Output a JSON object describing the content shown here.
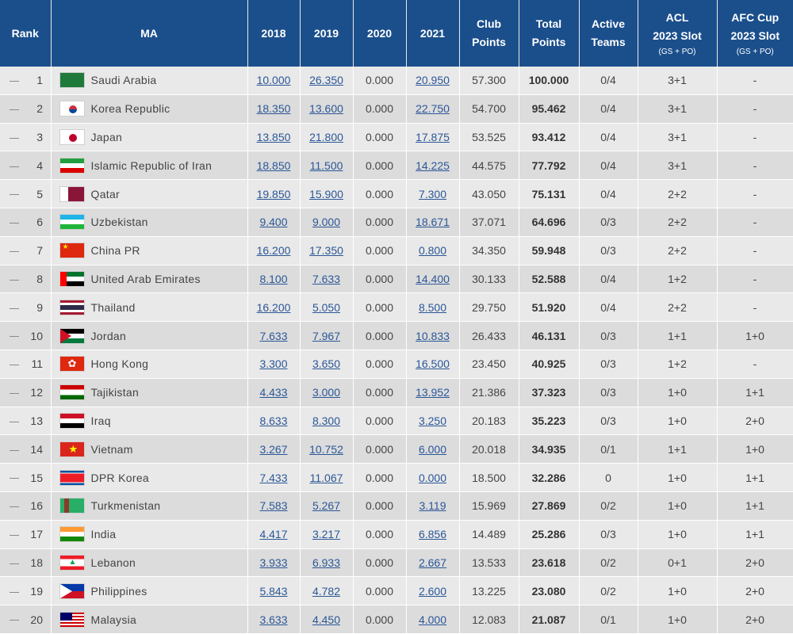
{
  "headers": {
    "rank": "Rank",
    "ma": "MA",
    "y2018": "2018",
    "y2019": "2019",
    "y2020": "2020",
    "y2021": "2021",
    "club_1": "Club",
    "club_2": "Points",
    "total_1": "Total",
    "total_2": "Points",
    "active_1": "Active",
    "active_2": "Teams",
    "acl_1": "ACL",
    "acl_2": "2023 Slot",
    "acl_sub": "(GS + PO)",
    "afc_1": "AFC Cup",
    "afc_2": "2023 Slot",
    "afc_sub": "(GS + PO)"
  },
  "rows": [
    {
      "rank": "1",
      "flag": "saudi-arabia-flag-icon",
      "name": "Saudi Arabia",
      "y2018": "10.000",
      "y2019": "26.350",
      "y2020": "0.000",
      "y2021": "20.950",
      "club": "57.300",
      "total": "100.000",
      "active": "0/4",
      "acl": "3+1",
      "afc": "-"
    },
    {
      "rank": "2",
      "flag": "korea-republic-flag-icon",
      "name": "Korea Republic",
      "y2018": "18.350",
      "y2019": "13.600",
      "y2020": "0.000",
      "y2021": "22.750",
      "club": "54.700",
      "total": "95.462",
      "active": "0/4",
      "acl": "3+1",
      "afc": "-"
    },
    {
      "rank": "3",
      "flag": "japan-flag-icon",
      "name": "Japan",
      "y2018": "13.850",
      "y2019": "21.800",
      "y2020": "0.000",
      "y2021": "17.875",
      "club": "53.525",
      "total": "93.412",
      "active": "0/4",
      "acl": "3+1",
      "afc": "-"
    },
    {
      "rank": "4",
      "flag": "iran-flag-icon",
      "name": "Islamic Republic of Iran",
      "y2018": "18.850",
      "y2019": "11.500",
      "y2020": "0.000",
      "y2021": "14.225",
      "club": "44.575",
      "total": "77.792",
      "active": "0/4",
      "acl": "3+1",
      "afc": "-"
    },
    {
      "rank": "5",
      "flag": "qatar-flag-icon",
      "name": "Qatar",
      "y2018": "19.850",
      "y2019": "15.900",
      "y2020": "0.000",
      "y2021": "7.300",
      "club": "43.050",
      "total": "75.131",
      "active": "0/4",
      "acl": "2+2",
      "afc": "-"
    },
    {
      "rank": "6",
      "flag": "uzbekistan-flag-icon",
      "name": "Uzbekistan",
      "y2018": "9.400",
      "y2019": "9.000",
      "y2020": "0.000",
      "y2021": "18.671",
      "club": "37.071",
      "total": "64.696",
      "active": "0/3",
      "acl": "2+2",
      "afc": "-"
    },
    {
      "rank": "7",
      "flag": "china-flag-icon",
      "name": "China PR",
      "y2018": "16.200",
      "y2019": "17.350",
      "y2020": "0.000",
      "y2021": "0.800",
      "club": "34.350",
      "total": "59.948",
      "active": "0/3",
      "acl": "2+2",
      "afc": "-"
    },
    {
      "rank": "8",
      "flag": "uae-flag-icon",
      "name": "United Arab Emirates",
      "y2018": "8.100",
      "y2019": "7.633",
      "y2020": "0.000",
      "y2021": "14.400",
      "club": "30.133",
      "total": "52.588",
      "active": "0/4",
      "acl": "1+2",
      "afc": "-"
    },
    {
      "rank": "9",
      "flag": "thailand-flag-icon",
      "name": "Thailand",
      "y2018": "16.200",
      "y2019": "5.050",
      "y2020": "0.000",
      "y2021": "8.500",
      "club": "29.750",
      "total": "51.920",
      "active": "0/4",
      "acl": "2+2",
      "afc": "-"
    },
    {
      "rank": "10",
      "flag": "jordan-flag-icon",
      "name": "Jordan",
      "y2018": "7.633",
      "y2019": "7.967",
      "y2020": "0.000",
      "y2021": "10.833",
      "club": "26.433",
      "total": "46.131",
      "active": "0/3",
      "acl": "1+1",
      "afc": "1+0"
    },
    {
      "rank": "11",
      "flag": "hong-kong-flag-icon",
      "name": "Hong Kong",
      "y2018": "3.300",
      "y2019": "3.650",
      "y2020": "0.000",
      "y2021": "16.500",
      "club": "23.450",
      "total": "40.925",
      "active": "0/3",
      "acl": "1+2",
      "afc": "-"
    },
    {
      "rank": "12",
      "flag": "tajikistan-flag-icon",
      "name": "Tajikistan",
      "y2018": "4.433",
      "y2019": "3.000",
      "y2020": "0.000",
      "y2021": "13.952",
      "club": "21.386",
      "total": "37.323",
      "active": "0/3",
      "acl": "1+0",
      "afc": "1+1"
    },
    {
      "rank": "13",
      "flag": "iraq-flag-icon",
      "name": "Iraq",
      "y2018": "8.633",
      "y2019": "8.300",
      "y2020": "0.000",
      "y2021": "3.250",
      "club": "20.183",
      "total": "35.223",
      "active": "0/3",
      "acl": "1+0",
      "afc": "2+0"
    },
    {
      "rank": "14",
      "flag": "vietnam-flag-icon",
      "name": "Vietnam",
      "y2018": "3.267",
      "y2019": "10.752",
      "y2020": "0.000",
      "y2021": "6.000",
      "club": "20.018",
      "total": "34.935",
      "active": "0/1",
      "acl": "1+1",
      "afc": "1+0"
    },
    {
      "rank": "15",
      "flag": "dpr-korea-flag-icon",
      "name": "DPR Korea",
      "y2018": "7.433",
      "y2019": "11.067",
      "y2020": "0.000",
      "y2021": "0.000",
      "club": "18.500",
      "total": "32.286",
      "active": "0",
      "acl": "1+0",
      "afc": "1+1"
    },
    {
      "rank": "16",
      "flag": "turkmenistan-flag-icon",
      "name": "Turkmenistan",
      "y2018": "7.583",
      "y2019": "5.267",
      "y2020": "0.000",
      "y2021": "3.119",
      "club": "15.969",
      "total": "27.869",
      "active": "0/2",
      "acl": "1+0",
      "afc": "1+1"
    },
    {
      "rank": "17",
      "flag": "india-flag-icon",
      "name": "India",
      "y2018": "4.417",
      "y2019": "3.217",
      "y2020": "0.000",
      "y2021": "6.856",
      "club": "14.489",
      "total": "25.286",
      "active": "0/3",
      "acl": "1+0",
      "afc": "1+1"
    },
    {
      "rank": "18",
      "flag": "lebanon-flag-icon",
      "name": "Lebanon",
      "y2018": "3.933",
      "y2019": "6.933",
      "y2020": "0.000",
      "y2021": "2.667",
      "club": "13.533",
      "total": "23.618",
      "active": "0/2",
      "acl": "0+1",
      "afc": "2+0"
    },
    {
      "rank": "19",
      "flag": "philippines-flag-icon",
      "name": "Philippines",
      "y2018": "5.843",
      "y2019": "4.782",
      "y2020": "0.000",
      "y2021": "2.600",
      "club": "13.225",
      "total": "23.080",
      "active": "0/2",
      "acl": "1+0",
      "afc": "2+0"
    },
    {
      "rank": "20",
      "flag": "malaysia-flag-icon",
      "name": "Malaysia",
      "y2018": "3.633",
      "y2019": "4.450",
      "y2020": "0.000",
      "y2021": "4.000",
      "club": "12.083",
      "total": "21.087",
      "active": "0/1",
      "acl": "1+0",
      "afc": "2+0"
    }
  ]
}
